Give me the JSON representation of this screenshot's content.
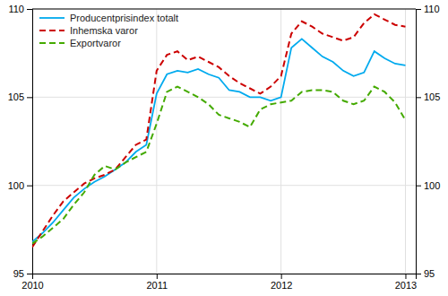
{
  "chart_data": {
    "type": "line",
    "x": [
      2010.0,
      2010.083,
      2010.167,
      2010.25,
      2010.333,
      2010.417,
      2010.5,
      2010.583,
      2010.667,
      2010.75,
      2010.833,
      2010.917,
      2011.0,
      2011.083,
      2011.167,
      2011.25,
      2011.333,
      2011.417,
      2011.5,
      2011.583,
      2011.667,
      2011.75,
      2011.833,
      2011.917,
      2012.0,
      2012.083,
      2012.167,
      2012.25,
      2012.333,
      2012.417,
      2012.5,
      2012.583,
      2012.667,
      2012.75,
      2012.833,
      2012.917,
      2013.0
    ],
    "series": [
      {
        "name": "Producentprisindex totalt",
        "color": "#00aaee",
        "line_style": "solid",
        "values": [
          96.8,
          97.3,
          97.9,
          98.6,
          99.3,
          99.8,
          100.2,
          100.5,
          100.9,
          101.3,
          101.9,
          102.3,
          105.2,
          106.3,
          106.5,
          106.4,
          106.6,
          106.3,
          106.1,
          105.4,
          105.3,
          105.0,
          105.0,
          104.8,
          105.0,
          107.8,
          108.3,
          107.8,
          107.3,
          107.0,
          106.5,
          106.2,
          106.4,
          107.6,
          107.2,
          106.9,
          106.8
        ]
      },
      {
        "name": "Inhemska varor",
        "color": "#cc0000",
        "line_style": "dashed",
        "values": [
          96.5,
          97.4,
          98.3,
          99.1,
          99.6,
          100.1,
          100.4,
          100.6,
          100.9,
          101.6,
          102.3,
          102.6,
          106.5,
          107.4,
          107.6,
          107.1,
          107.3,
          107.0,
          106.7,
          106.2,
          105.8,
          105.5,
          105.2,
          105.6,
          106.2,
          108.6,
          109.3,
          109.0,
          108.6,
          108.4,
          108.2,
          108.4,
          109.2,
          109.7,
          109.4,
          109.1,
          109.0
        ]
      },
      {
        "name": "Exportvaror",
        "color": "#44aa00",
        "line_style": "dashed",
        "values": [
          96.7,
          97.1,
          97.6,
          98.1,
          98.9,
          99.6,
          100.6,
          101.1,
          100.9,
          101.3,
          101.6,
          101.9,
          103.5,
          105.3,
          105.6,
          105.3,
          105.0,
          104.6,
          104.0,
          103.8,
          103.6,
          103.3,
          104.3,
          104.6,
          104.7,
          104.8,
          105.3,
          105.4,
          105.4,
          105.3,
          104.8,
          104.6,
          104.8,
          105.6,
          105.3,
          104.7,
          103.7
        ]
      }
    ],
    "xlim": [
      2010.0,
      2013.083
    ],
    "xticks": [
      2010,
      2011,
      2012,
      2013
    ],
    "ylim": [
      95,
      110
    ],
    "yticks": [
      95,
      100,
      105,
      110
    ],
    "y2lim": [
      95,
      110
    ],
    "y2ticks": [
      95,
      100,
      105,
      110
    ],
    "grid": true,
    "legend": "upper left"
  }
}
